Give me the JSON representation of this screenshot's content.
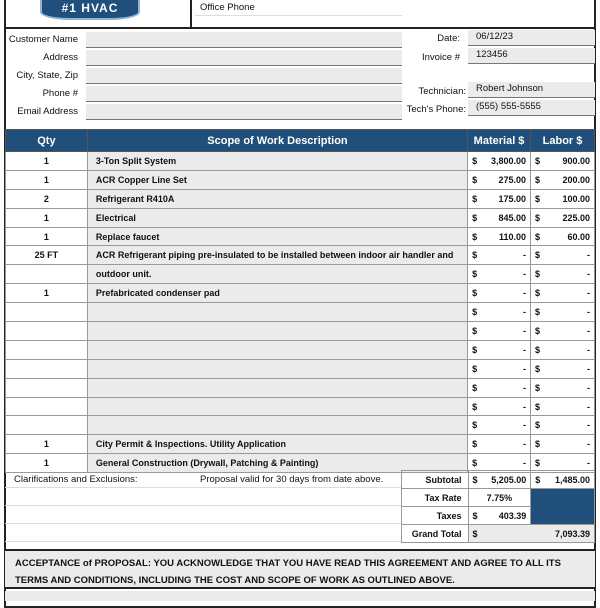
{
  "header": {
    "logo_text": "#1 HVAC",
    "office_phone_label": "Office Phone"
  },
  "customer": {
    "labels": [
      "Customer Name",
      "Address",
      "City, State, Zip",
      "Phone #",
      "Email Address"
    ]
  },
  "info": {
    "date_label": "Date:",
    "date": "06/12/23",
    "invoice_label": "Invoice #",
    "invoice": "123456",
    "technician_label": "Technician:",
    "technician": "Robert Johnson",
    "tech_phone_label": "Tech's Phone:",
    "tech_phone": "(555) 555-5555"
  },
  "table": {
    "headers": [
      "Qty",
      "Scope of Work Description",
      "Material $",
      "Labor $"
    ],
    "rows": [
      {
        "qty": "1",
        "desc": "3-Ton Split System",
        "mat": "3,800.00",
        "lab": "900.00"
      },
      {
        "qty": "1",
        "desc": "ACR Copper Line Set",
        "mat": "275.00",
        "lab": "200.00"
      },
      {
        "qty": "2",
        "desc": "Refrigerant R410A",
        "mat": "175.00",
        "lab": "100.00"
      },
      {
        "qty": "1",
        "desc": "Electrical",
        "mat": "845.00",
        "lab": "225.00"
      },
      {
        "qty": "1",
        "desc": "Replace faucet",
        "mat": "110.00",
        "lab": "60.00"
      },
      {
        "qty": "25 FT",
        "desc": "ACR Refrigerant piping pre-insulated to be installed between indoor air handler and",
        "mat": "-",
        "lab": "-"
      },
      {
        "qty": "",
        "desc": "outdoor unit.",
        "mat": "-",
        "lab": "-"
      },
      {
        "qty": "1",
        "desc": "Prefabricated condenser pad",
        "mat": "-",
        "lab": "-"
      },
      {
        "qty": "",
        "desc": "",
        "mat": "-",
        "lab": "-"
      },
      {
        "qty": "",
        "desc": "",
        "mat": "-",
        "lab": "-"
      },
      {
        "qty": "",
        "desc": "",
        "mat": "-",
        "lab": "-"
      },
      {
        "qty": "",
        "desc": "",
        "mat": "-",
        "lab": "-"
      },
      {
        "qty": "",
        "desc": "",
        "mat": "-",
        "lab": "-"
      },
      {
        "qty": "",
        "desc": "",
        "mat": "-",
        "lab": "-"
      },
      {
        "qty": "",
        "desc": "",
        "mat": "-",
        "lab": "-"
      },
      {
        "qty": "1",
        "desc": "City Permit & Inspections. Utility Application",
        "mat": "-",
        "lab": "-"
      },
      {
        "qty": "1",
        "desc": "General Construction (Drywall, Patching & Painting)",
        "mat": "-",
        "lab": "-"
      }
    ],
    "currency": "$"
  },
  "summary": {
    "clarifications_label": "Clarifications and Exclusions:",
    "validity": "Proposal valid for 30 days from date above.",
    "subtotal_label": "Subtotal",
    "subtotal_material": "5,205.00",
    "subtotal_labor": "1,485.00",
    "tax_rate_label": "Tax Rate",
    "tax_rate": "7.75%",
    "taxes_label": "Taxes",
    "taxes": "403.39",
    "grand_total_label": "Grand Total",
    "grand_total": "7,093.39"
  },
  "acceptance": "ACCEPTANCE of PROPOSAL: YOU ACKNOWLEDGE THAT YOU HAVE READ THIS AGREEMENT AND AGREE TO ALL ITS TERMS AND CONDITIONS, INCLUDING THE COST AND SCOPE OF WORK AS OUTLINED ABOVE.",
  "colors": {
    "accent": "#1f4f7a",
    "field": "#ebebeb"
  }
}
